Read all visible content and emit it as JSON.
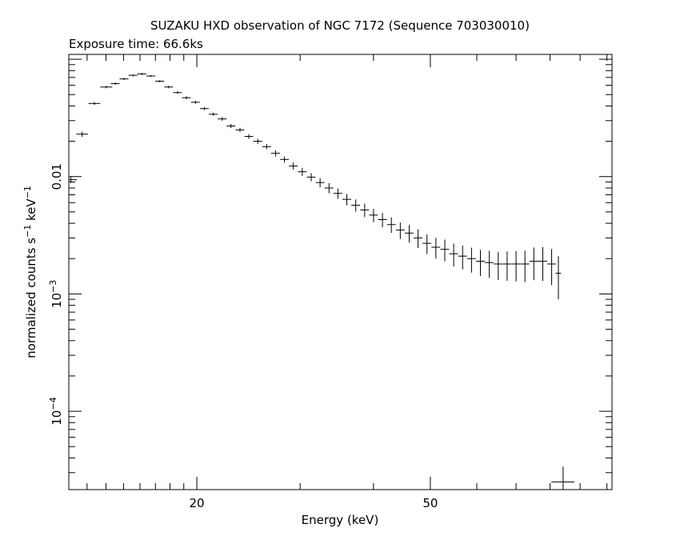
{
  "chart_data": {
    "type": "scatter",
    "title": "SUZAKU HXD observation of NGC 7172 (Sequence 703030010)",
    "subtitle": "Exposure time: 66.6ks",
    "xlabel": "Energy (keV)",
    "ylabel_main": "normalized counts s",
    "ylabel_sup1": "−1",
    "ylabel_mid": " keV",
    "ylabel_sup2": "−1",
    "x_scale": "log",
    "y_scale": "log",
    "xlim": [
      12.1,
      102
    ],
    "ylim": [
      2.15e-05,
      0.11
    ],
    "x_tick_labels": [
      {
        "value": 20,
        "label": "20"
      },
      {
        "value": 50,
        "label": "50"
      }
    ],
    "y_tick_labels": [
      {
        "value": 0.01,
        "base": "0.01",
        "sup": ""
      },
      {
        "value": 0.001,
        "base": "10",
        "sup": "−3"
      },
      {
        "value": 0.0001,
        "base": "10",
        "sup": "−4"
      }
    ],
    "grid": false,
    "series": [
      {
        "x": [
          12.2,
          12.75,
          13.38,
          14.02,
          14.52,
          15.03,
          15.57,
          16.12,
          16.7,
          17.29,
          17.91,
          18.54,
          19.2,
          19.89,
          20.6,
          21.33,
          22.09,
          22.87,
          23.69,
          24.53,
          25.4,
          26.3,
          27.24,
          28.21,
          29.21,
          30.25,
          31.33,
          32.44,
          33.6,
          34.79,
          36.03,
          37.31,
          38.64,
          40.01,
          41.44,
          42.91,
          44.44,
          46.02,
          47.65,
          49.35,
          51.1,
          52.92,
          54.8,
          56.75,
          58.77,
          60.86,
          63.02,
          65.27,
          67.59,
          70.0,
          72.48,
          75.06,
          77.73,
          80.49,
          82.65,
          84.2
        ],
        "y": [
          0.0094,
          0.023,
          0.042,
          0.058,
          0.062,
          0.068,
          0.073,
          0.075,
          0.072,
          0.065,
          0.058,
          0.052,
          0.047,
          0.043,
          0.038,
          0.034,
          0.031,
          0.027,
          0.025,
          0.022,
          0.02,
          0.018,
          0.0158,
          0.014,
          0.0123,
          0.011,
          0.0099,
          0.0089,
          0.008,
          0.0072,
          0.0064,
          0.0057,
          0.0052,
          0.0047,
          0.0043,
          0.0039,
          0.0035,
          0.0033,
          0.003,
          0.0027,
          0.0025,
          0.0024,
          0.0022,
          0.0021,
          0.002,
          0.0019,
          0.00185,
          0.0018,
          0.0018,
          0.0018,
          0.0018,
          0.0019,
          0.0019,
          0.0018,
          0.0015,
          2.5e-05
        ],
        "xerr": [
          0.29,
          0.29,
          0.31,
          0.33,
          0.25,
          0.26,
          0.27,
          0.28,
          0.29,
          0.3,
          0.31,
          0.32,
          0.33,
          0.34,
          0.35,
          0.37,
          0.38,
          0.39,
          0.41,
          0.42,
          0.44,
          0.45,
          0.47,
          0.48,
          0.5,
          0.52,
          0.54,
          0.56,
          0.58,
          0.6,
          0.62,
          0.64,
          0.66,
          0.69,
          0.71,
          0.74,
          0.76,
          0.79,
          0.82,
          0.85,
          0.88,
          0.91,
          0.94,
          0.98,
          1.01,
          1.05,
          1.08,
          1.12,
          1.16,
          1.2,
          1.25,
          1.29,
          1.34,
          1.39,
          0.9,
          3.8
        ],
        "yerr_frac": [
          0.06,
          0.05,
          0.03,
          0.025,
          0.02,
          0.02,
          0.02,
          0.02,
          0.02,
          0.02,
          0.025,
          0.025,
          0.03,
          0.03,
          0.03,
          0.03,
          0.035,
          0.04,
          0.04,
          0.045,
          0.05,
          0.05,
          0.06,
          0.06,
          0.07,
          0.08,
          0.08,
          0.09,
          0.1,
          0.1,
          0.11,
          0.12,
          0.13,
          0.13,
          0.14,
          0.15,
          0.16,
          0.17,
          0.18,
          0.19,
          0.2,
          0.21,
          0.22,
          0.23,
          0.24,
          0.25,
          0.26,
          0.27,
          0.28,
          0.29,
          0.3,
          0.31,
          0.32,
          0.34,
          0.4,
          0.35
        ]
      }
    ]
  }
}
